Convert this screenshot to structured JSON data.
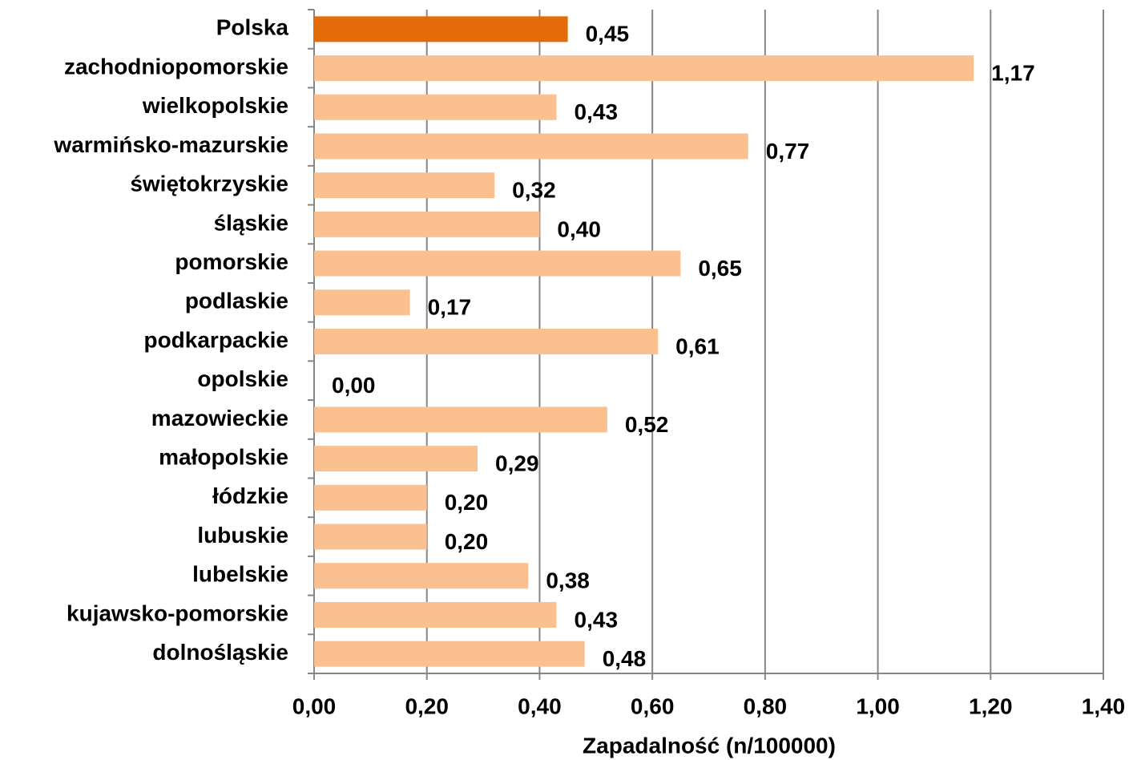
{
  "chart_data": {
    "type": "bar",
    "orientation": "horizontal",
    "x_label": "Zapadalność (n/100000)",
    "categories": [
      "Polska",
      "zachodniopomorskie",
      "wielkopolskie",
      "warmińsko-mazurskie",
      "świętokrzyskie",
      "śląskie",
      "pomorskie",
      "podlaskie",
      "podkarpackie",
      "opolskie",
      "mazowieckie",
      "małopolskie",
      "łódzkie",
      "lubuskie",
      "lubelskie",
      "kujawsko-pomorskie",
      "dolnośląskie"
    ],
    "values": [
      0.45,
      1.17,
      0.43,
      0.77,
      0.32,
      0.4,
      0.65,
      0.17,
      0.61,
      0.0,
      0.52,
      0.29,
      0.2,
      0.2,
      0.38,
      0.43,
      0.48
    ],
    "value_labels": [
      "0,45",
      "1,17",
      "0,43",
      "0,77",
      "0,32",
      "0,40",
      "0,65",
      "0,17",
      "0,61",
      "0,00",
      "0,52",
      "0,29",
      "0,20",
      "0,20",
      "0,38",
      "0,43",
      "0,48"
    ],
    "colors": [
      "#e36c09",
      "#fac090",
      "#fac090",
      "#fac090",
      "#fac090",
      "#fac090",
      "#fac090",
      "#fac090",
      "#fac090",
      "#fac090",
      "#fac090",
      "#fac090",
      "#fac090",
      "#fac090",
      "#fac090",
      "#fac090",
      "#fac090"
    ],
    "xlim": [
      0,
      1.4
    ],
    "xticks": [
      {
        "value": 0,
        "label": "0,00"
      },
      {
        "value": 0.2,
        "label": "0,20"
      },
      {
        "value": 0.4,
        "label": "0,40"
      },
      {
        "value": 0.6,
        "label": "0,60"
      },
      {
        "value": 0.8,
        "label": "0,80"
      },
      {
        "value": 1.0,
        "label": "1,00"
      },
      {
        "value": 1.2,
        "label": "1,20"
      },
      {
        "value": 1.4,
        "label": "1,40"
      }
    ],
    "grid": true
  }
}
